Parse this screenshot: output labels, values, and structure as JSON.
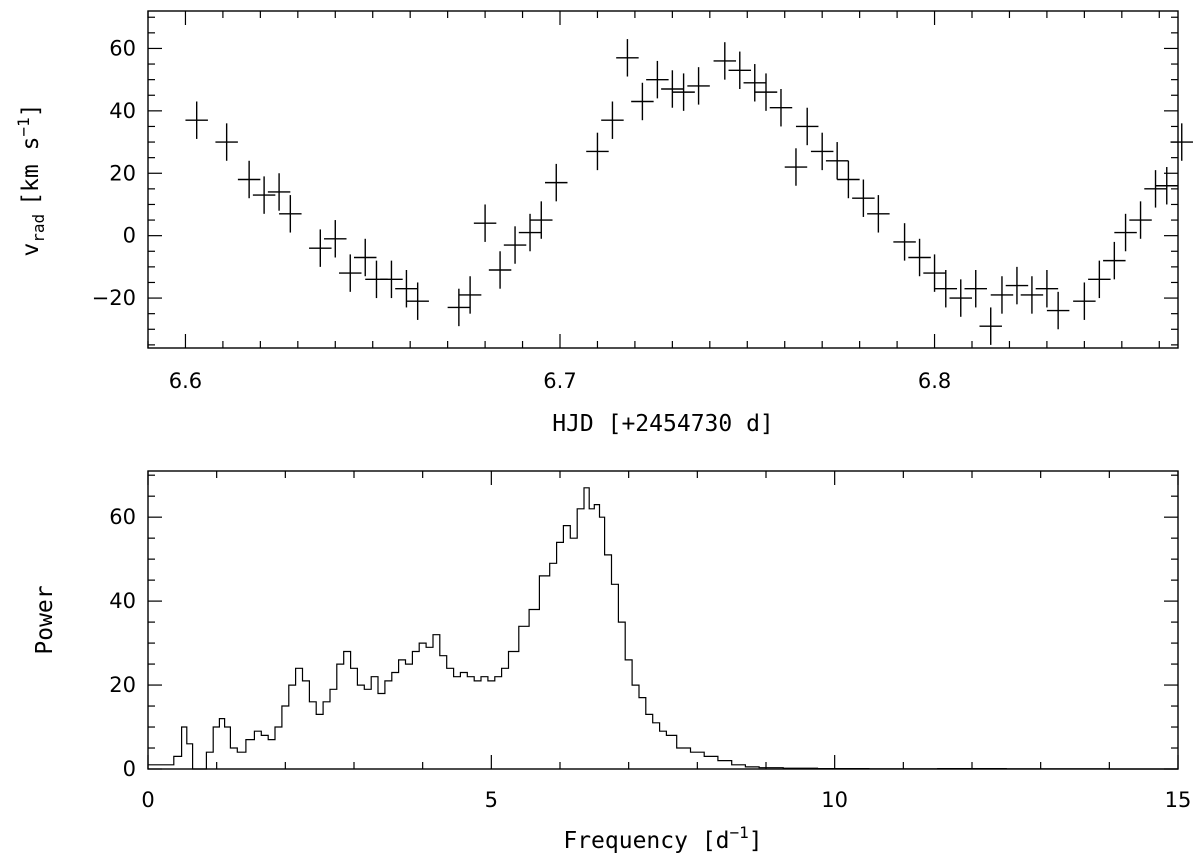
{
  "chart_data": [
    {
      "type": "scatter",
      "xlabel": "HJD [+2454730 d]",
      "ylabel_main": "v",
      "ylabel_sub": "rad",
      "ylabel_unit": "[km s",
      "ylabel_sup": "−1",
      "ylabel_end": "]",
      "xlim": [
        6.59,
        6.865
      ],
      "ylim": [
        -36,
        72
      ],
      "xticks": [
        6.6,
        6.7,
        6.8
      ],
      "xtick_labels": [
        "6.6",
        "6.7",
        "6.8"
      ],
      "yticks": [
        -20,
        0,
        20,
        40,
        60
      ],
      "ytick_labels": [
        "−20",
        "0",
        "20",
        "40",
        "60"
      ],
      "error_x": 0.003,
      "error_y": 6,
      "points": [
        {
          "x": 6.603,
          "y": 37
        },
        {
          "x": 6.611,
          "y": 30
        },
        {
          "x": 6.617,
          "y": 18
        },
        {
          "x": 6.621,
          "y": 13
        },
        {
          "x": 6.625,
          "y": 14
        },
        {
          "x": 6.628,
          "y": 7
        },
        {
          "x": 6.636,
          "y": -4
        },
        {
          "x": 6.64,
          "y": -1
        },
        {
          "x": 6.644,
          "y": -12
        },
        {
          "x": 6.648,
          "y": -7
        },
        {
          "x": 6.651,
          "y": -14
        },
        {
          "x": 6.655,
          "y": -14
        },
        {
          "x": 6.659,
          "y": -17
        },
        {
          "x": 6.662,
          "y": -21
        },
        {
          "x": 6.673,
          "y": -23
        },
        {
          "x": 6.676,
          "y": -19
        },
        {
          "x": 6.68,
          "y": 4
        },
        {
          "x": 6.684,
          "y": -11
        },
        {
          "x": 6.688,
          "y": -3
        },
        {
          "x": 6.692,
          "y": 1
        },
        {
          "x": 6.695,
          "y": 5
        },
        {
          "x": 6.699,
          "y": 17
        },
        {
          "x": 6.71,
          "y": 27
        },
        {
          "x": 6.714,
          "y": 37
        },
        {
          "x": 6.718,
          "y": 57
        },
        {
          "x": 6.722,
          "y": 43
        },
        {
          "x": 6.726,
          "y": 50
        },
        {
          "x": 6.73,
          "y": 47
        },
        {
          "x": 6.733,
          "y": 46
        },
        {
          "x": 6.737,
          "y": 48
        },
        {
          "x": 6.744,
          "y": 56
        },
        {
          "x": 6.748,
          "y": 53
        },
        {
          "x": 6.752,
          "y": 49
        },
        {
          "x": 6.755,
          "y": 46
        },
        {
          "x": 6.759,
          "y": 41
        },
        {
          "x": 6.763,
          "y": 22
        },
        {
          "x": 6.766,
          "y": 35
        },
        {
          "x": 6.77,
          "y": 27
        },
        {
          "x": 6.774,
          "y": 24
        },
        {
          "x": 6.777,
          "y": 18
        },
        {
          "x": 6.781,
          "y": 12
        },
        {
          "x": 6.785,
          "y": 7
        },
        {
          "x": 6.792,
          "y": -2
        },
        {
          "x": 6.796,
          "y": -7
        },
        {
          "x": 6.8,
          "y": -12
        },
        {
          "x": 6.803,
          "y": -17
        },
        {
          "x": 6.807,
          "y": -20
        },
        {
          "x": 6.811,
          "y": -17
        },
        {
          "x": 6.815,
          "y": -29
        },
        {
          "x": 6.818,
          "y": -19
        },
        {
          "x": 6.822,
          "y": -16
        },
        {
          "x": 6.826,
          "y": -19
        },
        {
          "x": 6.83,
          "y": -17
        },
        {
          "x": 6.833,
          "y": -24
        },
        {
          "x": 6.84,
          "y": -21
        },
        {
          "x": 6.844,
          "y": -14
        },
        {
          "x": 6.848,
          "y": -8
        },
        {
          "x": 6.851,
          "y": 1
        },
        {
          "x": 6.855,
          "y": 5
        },
        {
          "x": 6.859,
          "y": 15
        },
        {
          "x": 6.862,
          "y": 16
        },
        {
          "x": 6.866,
          "y": 30
        }
      ]
    },
    {
      "type": "line",
      "xlabel_main": "Frequency  [d",
      "xlabel_sup": "−1",
      "xlabel_end": "]",
      "ylabel": "Power",
      "xlim": [
        0,
        15
      ],
      "ylim": [
        0,
        71
      ],
      "xticks": [
        0,
        5,
        10,
        15
      ],
      "xtick_labels": [
        "0",
        "5",
        "10",
        "15"
      ],
      "yticks": [
        0,
        20,
        40,
        60
      ],
      "ytick_labels": [
        "0",
        "20",
        "40",
        "60"
      ],
      "series": [
        {
          "x": [
            0,
            0.3,
            0.45,
            0.53,
            0.6,
            0.7,
            0.8,
            0.9,
            1.0,
            1.08,
            1.15,
            1.25,
            1.35,
            1.5,
            1.6,
            1.7,
            1.8,
            1.9,
            2.0,
            2.1,
            2.2,
            2.3,
            2.4,
            2.5,
            2.6,
            2.7,
            2.8,
            2.9,
            3.0,
            3.1,
            3.2,
            3.3,
            3.4,
            3.5,
            3.6,
            3.7,
            3.8,
            3.9,
            4.0,
            4.1,
            4.2,
            4.3,
            4.4,
            4.5,
            4.6,
            4.7,
            4.8,
            4.9,
            5.0,
            5.1,
            5.2,
            5.3,
            5.5,
            5.6,
            5.8,
            5.9,
            6.0,
            6.1,
            6.2,
            6.3,
            6.4,
            6.45,
            6.55,
            6.6,
            6.7,
            6.8,
            6.9,
            7.0,
            7.1,
            7.2,
            7.3,
            7.4,
            7.5,
            7.6,
            7.8,
            8.0,
            8.2,
            8.4,
            8.6,
            8.8,
            9.0,
            9.5,
            10.0,
            11.0,
            12.0,
            13.0,
            15.0
          ],
          "y": [
            1,
            1,
            3,
            10,
            6,
            0,
            0,
            4,
            10,
            12,
            10,
            5,
            4,
            7,
            9,
            8,
            7,
            10,
            15,
            20,
            24,
            21,
            16,
            13,
            16,
            19,
            25,
            28,
            24,
            20,
            19,
            22,
            18,
            21,
            23,
            26,
            25,
            28,
            30,
            29,
            32,
            27,
            24,
            22,
            23,
            22,
            21,
            22,
            21,
            22,
            24,
            28,
            34,
            38,
            46,
            49,
            54,
            58,
            55,
            62,
            67,
            62,
            63,
            60,
            51,
            44,
            35,
            26,
            20,
            17,
            13,
            11,
            9,
            8,
            5,
            4,
            3,
            2,
            1,
            0.5,
            0.3,
            0.2,
            0.1,
            0.05,
            0.1,
            0.05,
            0
          ]
        }
      ]
    }
  ]
}
